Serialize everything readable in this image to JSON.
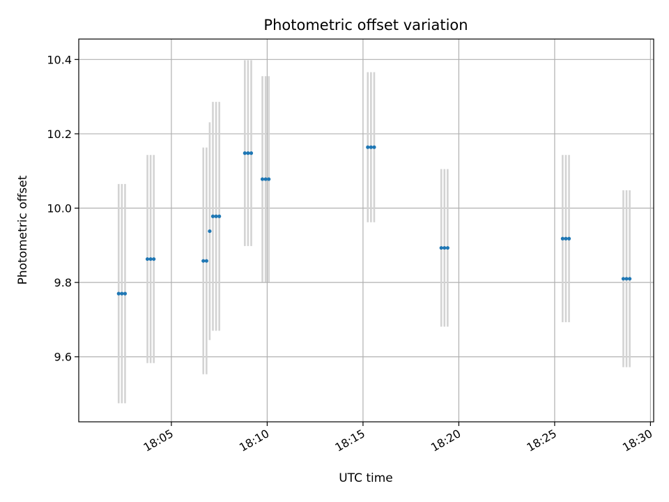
{
  "chart_data": {
    "type": "scatter",
    "title": "Photometric offset variation",
    "xlabel": "UTC time",
    "ylabel": "Photometric offset",
    "x_axis": {
      "kind": "time",
      "range": [
        "18:00:10",
        "18:30:10"
      ],
      "ticks": [
        "18:05",
        "18:10",
        "18:15",
        "18:20",
        "18:25",
        "18:30"
      ]
    },
    "y_axis": {
      "range": [
        9.425,
        10.455
      ],
      "ticks": [
        "9.6",
        "9.8",
        "10.0",
        "10.2",
        "10.4"
      ]
    },
    "grid": true,
    "marker_color": "#1f77b4",
    "errorbar_color": "#d3d3d3",
    "series": [
      {
        "points": [
          {
            "t": "18:02:15",
            "y": 9.77,
            "err": 0.295
          },
          {
            "t": "18:02:25",
            "y": 9.77,
            "err": 0.295
          },
          {
            "t": "18:02:35",
            "y": 9.77,
            "err": 0.295
          },
          {
            "t": "18:03:45",
            "y": 9.863,
            "err": 0.28
          },
          {
            "t": "18:03:55",
            "y": 9.863,
            "err": 0.28
          },
          {
            "t": "18:04:05",
            "y": 9.863,
            "err": 0.28
          },
          {
            "t": "18:06:40",
            "y": 9.858,
            "err": 0.305
          },
          {
            "t": "18:06:50",
            "y": 9.858,
            "err": 0.305
          },
          {
            "t": "18:07:00",
            "y": 9.938,
            "err": 0.293
          },
          {
            "t": "18:07:10",
            "y": 9.978,
            "err": 0.308
          },
          {
            "t": "18:07:20",
            "y": 9.978,
            "err": 0.308
          },
          {
            "t": "18:07:30",
            "y": 9.978,
            "err": 0.308
          },
          {
            "t": "18:08:50",
            "y": 10.148,
            "err": 0.25
          },
          {
            "t": "18:09:00",
            "y": 10.148,
            "err": 0.25
          },
          {
            "t": "18:09:10",
            "y": 10.148,
            "err": 0.25
          },
          {
            "t": "18:09:45",
            "y": 10.078,
            "err": 0.277
          },
          {
            "t": "18:09:55",
            "y": 10.078,
            "err": 0.277
          },
          {
            "t": "18:10:05",
            "y": 10.078,
            "err": 0.277
          },
          {
            "t": "18:15:15",
            "y": 10.164,
            "err": 0.202
          },
          {
            "t": "18:15:25",
            "y": 10.164,
            "err": 0.202
          },
          {
            "t": "18:15:35",
            "y": 10.164,
            "err": 0.202
          },
          {
            "t": "18:19:05",
            "y": 9.893,
            "err": 0.212
          },
          {
            "t": "18:19:15",
            "y": 9.893,
            "err": 0.212
          },
          {
            "t": "18:19:25",
            "y": 9.893,
            "err": 0.212
          },
          {
            "t": "18:25:25",
            "y": 9.918,
            "err": 0.225
          },
          {
            "t": "18:25:35",
            "y": 9.918,
            "err": 0.225
          },
          {
            "t": "18:25:45",
            "y": 9.918,
            "err": 0.225
          },
          {
            "t": "18:28:35",
            "y": 9.81,
            "err": 0.238
          },
          {
            "t": "18:28:45",
            "y": 9.81,
            "err": 0.238
          },
          {
            "t": "18:28:55",
            "y": 9.81,
            "err": 0.238
          }
        ]
      }
    ]
  }
}
